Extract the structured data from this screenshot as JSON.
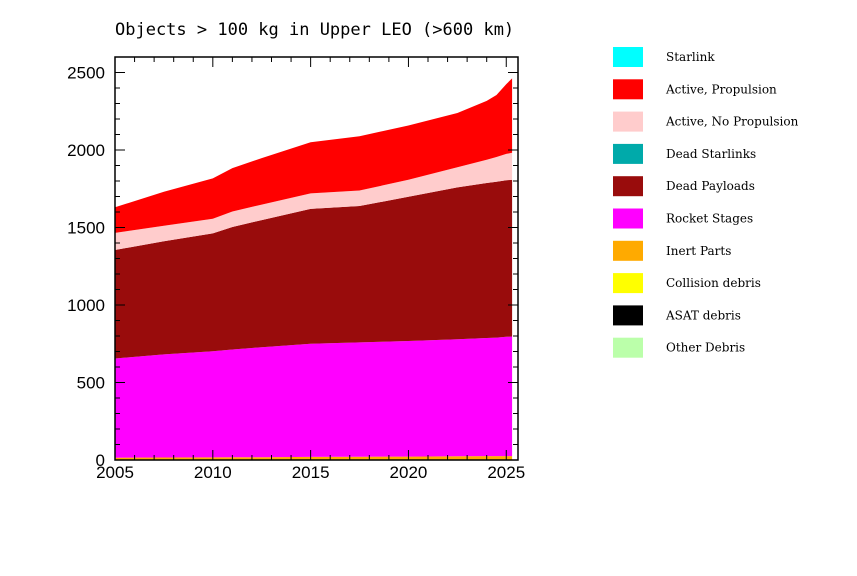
{
  "chart_data": {
    "type": "area",
    "title": "Objects > 100 kg in Upper LEO (>600 km)",
    "xlabel": "",
    "ylabel": "",
    "xlim": [
      2005,
      2025.6
    ],
    "ylim": [
      0,
      2600
    ],
    "x_ticks": [
      2005,
      2010,
      2015,
      2020,
      2025
    ],
    "y_ticks": [
      0,
      500,
      1000,
      1500,
      2000,
      2500
    ],
    "grid": false,
    "legend_position": "right",
    "stacking": "stacked",
    "x": [
      2005,
      2007.5,
      2010,
      2011,
      2012.5,
      2015,
      2017.5,
      2020,
      2022.5,
      2024,
      2024.5,
      2025,
      2025.3
    ],
    "series": [
      {
        "name": "Starlink",
        "color": "#00ffff",
        "values": [
          0,
          0,
          0,
          0,
          0,
          0,
          0,
          0,
          0,
          0,
          0,
          0,
          0
        ]
      },
      {
        "name": "Active, Propulsion",
        "color": "#ff0000",
        "values": [
          165,
          220,
          260,
          280,
          300,
          330,
          350,
          350,
          350,
          380,
          400,
          450,
          480
        ]
      },
      {
        "name": "Active, No Propulsion",
        "color": "#ffcccc",
        "values": [
          110,
          100,
          95,
          100,
          100,
          100,
          100,
          110,
          130,
          150,
          160,
          170,
          175
        ]
      },
      {
        "name": "Dead Starlinks",
        "color": "#00aaaa",
        "values": [
          0,
          0,
          0,
          0,
          0,
          0,
          0,
          0,
          0,
          0,
          0,
          0,
          0
        ]
      },
      {
        "name": "Dead Payloads",
        "color": "#990c0c",
        "values": [
          700,
          730,
          760,
          790,
          820,
          870,
          880,
          930,
          980,
          1000,
          1005,
          1010,
          1010
        ]
      },
      {
        "name": "Rocket Stages",
        "color": "#ff00ff",
        "values": [
          640,
          665,
          685,
          695,
          710,
          730,
          738,
          746,
          755,
          762,
          765,
          770,
          772
        ]
      },
      {
        "name": "Inert Parts",
        "color": "#ffaa00",
        "values": [
          15,
          16,
          17,
          18,
          18,
          20,
          21,
          22,
          24,
          25,
          25,
          25,
          25
        ]
      },
      {
        "name": "Collision debris",
        "color": "#ffff00",
        "values": [
          0,
          0,
          0,
          0,
          0,
          0,
          0,
          0,
          0,
          0,
          0,
          0,
          0
        ]
      },
      {
        "name": "ASAT debris",
        "color": "#000000",
        "values": [
          0,
          0,
          0,
          0,
          0,
          0,
          0,
          0,
          0,
          0,
          0,
          0,
          0
        ]
      },
      {
        "name": "Other Debris",
        "color": "#bbffaa",
        "values": [
          0,
          0,
          0,
          0,
          0,
          0,
          0,
          0,
          0,
          0,
          0,
          0,
          0
        ]
      }
    ]
  }
}
